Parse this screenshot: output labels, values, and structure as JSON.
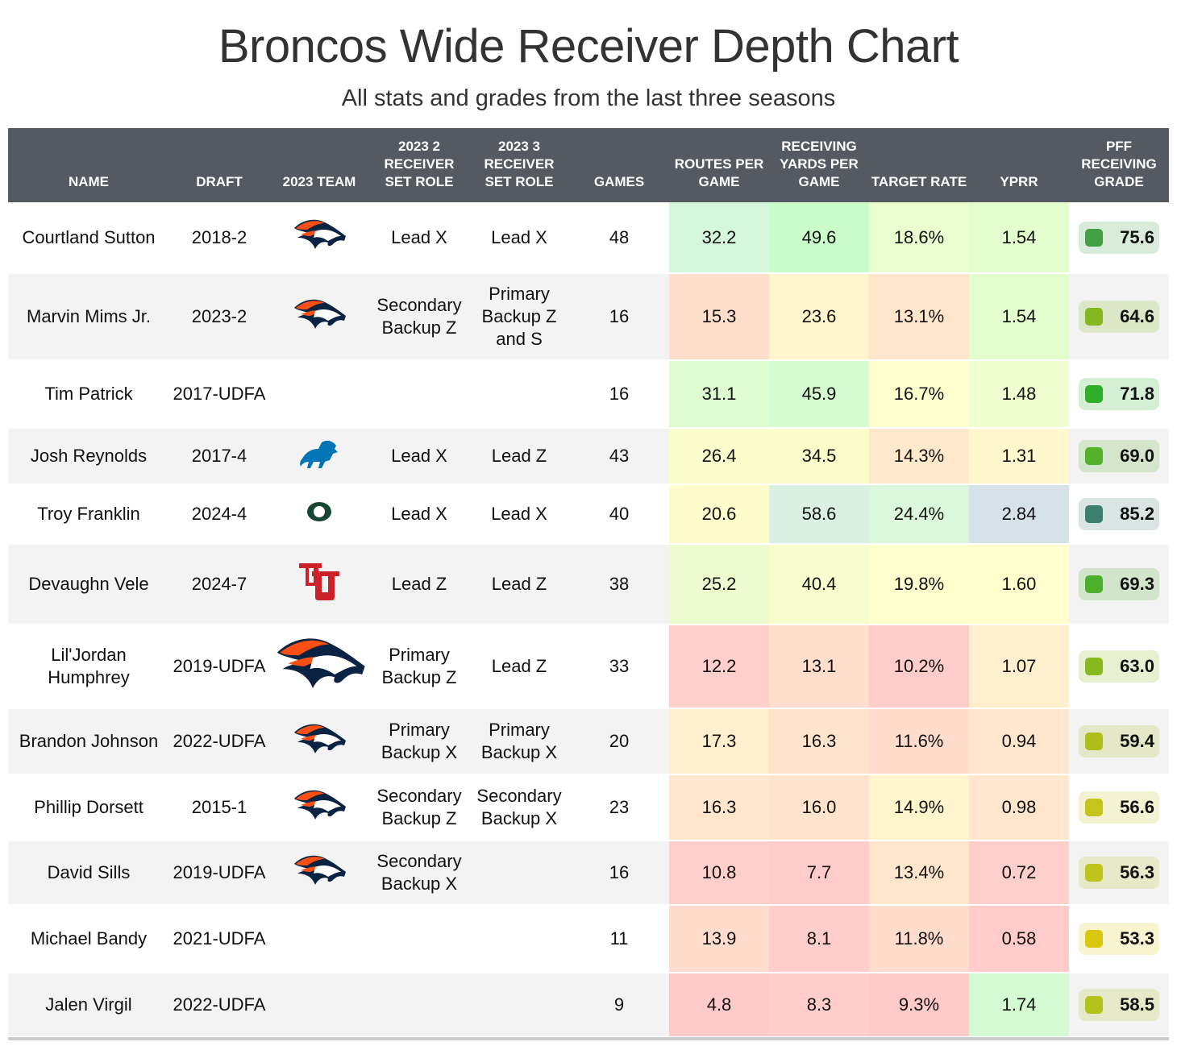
{
  "title": "Broncos Wide Receiver Depth Chart",
  "subtitle": "All stats and grades from the last three seasons",
  "chart_data": {
    "type": "table",
    "columns": [
      "NAME",
      "DRAFT",
      "2023 TEAM",
      "2023 2 RECEIVER SET ROLE",
      "2023 3 RECEIVER SET ROLE",
      "GAMES",
      "ROUTES PER GAME",
      "RECEIVING YARDS PER GAME",
      "TARGET RATE",
      "YPRR",
      "PFF RECEIVING GRADE"
    ],
    "rows": [
      {
        "name": "Courtland Sutton",
        "draft": "2018-2",
        "team_logo": "broncos",
        "r2": "Lead X",
        "r3": "Lead X",
        "games": "48",
        "routes": "32.2",
        "ryds": "49.6",
        "target": "18.6%",
        "yprr": "1.54",
        "grade": "75.6",
        "colors": [
          "#d5f7dc",
          "#cbfdcb",
          "#eaffcf",
          "#e3fdce"
        ],
        "grade_color": "#43a047"
      },
      {
        "name": "Marvin Mims Jr.",
        "draft": "2023-2",
        "team_logo": "broncos",
        "r2": "Secondary Backup Z",
        "r3": "Primary Backup Z and S",
        "games": "16",
        "routes": "15.3",
        "ryds": "23.6",
        "target": "13.1%",
        "yprr": "1.54",
        "grade": "64.6",
        "colors": [
          "#ffdfcc",
          "#fff5cc",
          "#ffe5cb",
          "#e3fdce"
        ],
        "grade_color": "#84b820"
      },
      {
        "name": "Tim Patrick",
        "draft": "2017-UDFA",
        "team_logo": "",
        "r2": "",
        "r3": "",
        "games": "16",
        "routes": "31.1",
        "ryds": "45.9",
        "target": "16.7%",
        "yprr": "1.48",
        "grade": "71.8",
        "colors": [
          "#dffcd0",
          "#d4fcd0",
          "#fdffcc",
          "#f0ffcf"
        ],
        "grade_color": "#2fae2a"
      },
      {
        "name": "Josh Reynolds",
        "draft": "2017-4",
        "team_logo": "lions",
        "r2": "Lead X",
        "r3": "Lead Z",
        "games": "43",
        "routes": "26.4",
        "ryds": "34.5",
        "target": "14.3%",
        "yprr": "1.31",
        "grade": "69.0",
        "colors": [
          "#fbfdcd",
          "#fdfdcc",
          "#ffe9cc",
          "#fff8cc"
        ],
        "grade_color": "#55b12a"
      },
      {
        "name": "Troy Franklin",
        "draft": "2024-4",
        "team_logo": "oregon",
        "r2": "Lead X",
        "r3": "Lead X",
        "games": "40",
        "routes": "20.6",
        "ryds": "58.6",
        "target": "24.4%",
        "yprr": "2.84",
        "grade": "85.2",
        "colors": [
          "#fffccc",
          "#daf0e2",
          "#dcf8dc",
          "#d5e2e8"
        ],
        "grade_color": "#3d7f6f"
      },
      {
        "name": "Devaughn Vele",
        "draft": "2024-7",
        "team_logo": "utah",
        "r2": "Lead Z",
        "r3": "Lead Z",
        "games": "38",
        "routes": "25.2",
        "ryds": "40.4",
        "target": "19.8%",
        "yprr": "1.60",
        "grade": "69.3",
        "colors": [
          "#ecfccf",
          "#f7fdcd",
          "#fdffcc",
          "#feffcc"
        ],
        "grade_color": "#4cb02c"
      },
      {
        "name": "Lil'Jordan Humphrey",
        "draft": "2019-UDFA",
        "team_logo": "broncos-large",
        "r2": "Primary Backup Z",
        "r3": "Lead Z",
        "games": "33",
        "routes": "12.2",
        "ryds": "13.1",
        "target": "10.2%",
        "yprr": "1.07",
        "grade": "63.0",
        "colors": [
          "#ffd0cb",
          "#ffdecd",
          "#ffcccc",
          "#ffefcc"
        ],
        "grade_color": "#86b91e"
      },
      {
        "name": "Brandon Johnson",
        "draft": "2022-UDFA",
        "team_logo": "broncos",
        "r2": "Primary Backup X",
        "r3": "Primary Backup X",
        "games": "20",
        "routes": "17.3",
        "ryds": "16.3",
        "target": "11.6%",
        "yprr": "0.94",
        "grade": "59.4",
        "colors": [
          "#ffefcc",
          "#ffe4cc",
          "#ffdccb",
          "#ffe6cc"
        ],
        "grade_color": "#aebd1a"
      },
      {
        "name": "Phillip Dorsett",
        "draft": "2015-1",
        "team_logo": "broncos",
        "r2": "Secondary Backup Z",
        "r3": "Secondary Backup X",
        "games": "23",
        "routes": "16.3",
        "ryds": "16.0",
        "target": "14.9%",
        "yprr": "0.98",
        "grade": "56.6",
        "colors": [
          "#ffe6cc",
          "#ffe3cc",
          "#fff5cc",
          "#ffe6cc"
        ],
        "grade_color": "#c4c41c"
      },
      {
        "name": "David Sills",
        "draft": "2019-UDFA",
        "team_logo": "broncos",
        "r2": "Secondary Backup X",
        "r3": "",
        "games": "16",
        "routes": "10.8",
        "ryds": "7.7",
        "target": "13.4%",
        "yprr": "0.72",
        "grade": "56.3",
        "colors": [
          "#ffcfcb",
          "#ffcccc",
          "#ffe6cc",
          "#ffcfcb"
        ],
        "grade_color": "#bdc41c"
      },
      {
        "name": "Michael Bandy",
        "draft": "2021-UDFA",
        "team_logo": "",
        "r2": "",
        "r3": "",
        "games": "11",
        "routes": "13.9",
        "ryds": "8.1",
        "target": "11.8%",
        "yprr": "0.58",
        "grade": "53.3",
        "colors": [
          "#ffdccc",
          "#ffcdcc",
          "#ffdccb",
          "#ffcbcb"
        ],
        "grade_color": "#d9c80f"
      },
      {
        "name": "Jalen Virgil",
        "draft": "2022-UDFA",
        "team_logo": "",
        "r2": "",
        "r3": "",
        "games": "9",
        "routes": "4.8",
        "ryds": "8.3",
        "target": "9.3%",
        "yprr": "1.74",
        "grade": "58.5",
        "colors": [
          "#ffcaca",
          "#ffcdcc",
          "#ffcaca",
          "#d4fad4"
        ],
        "grade_color": "#b4c21c"
      }
    ]
  }
}
